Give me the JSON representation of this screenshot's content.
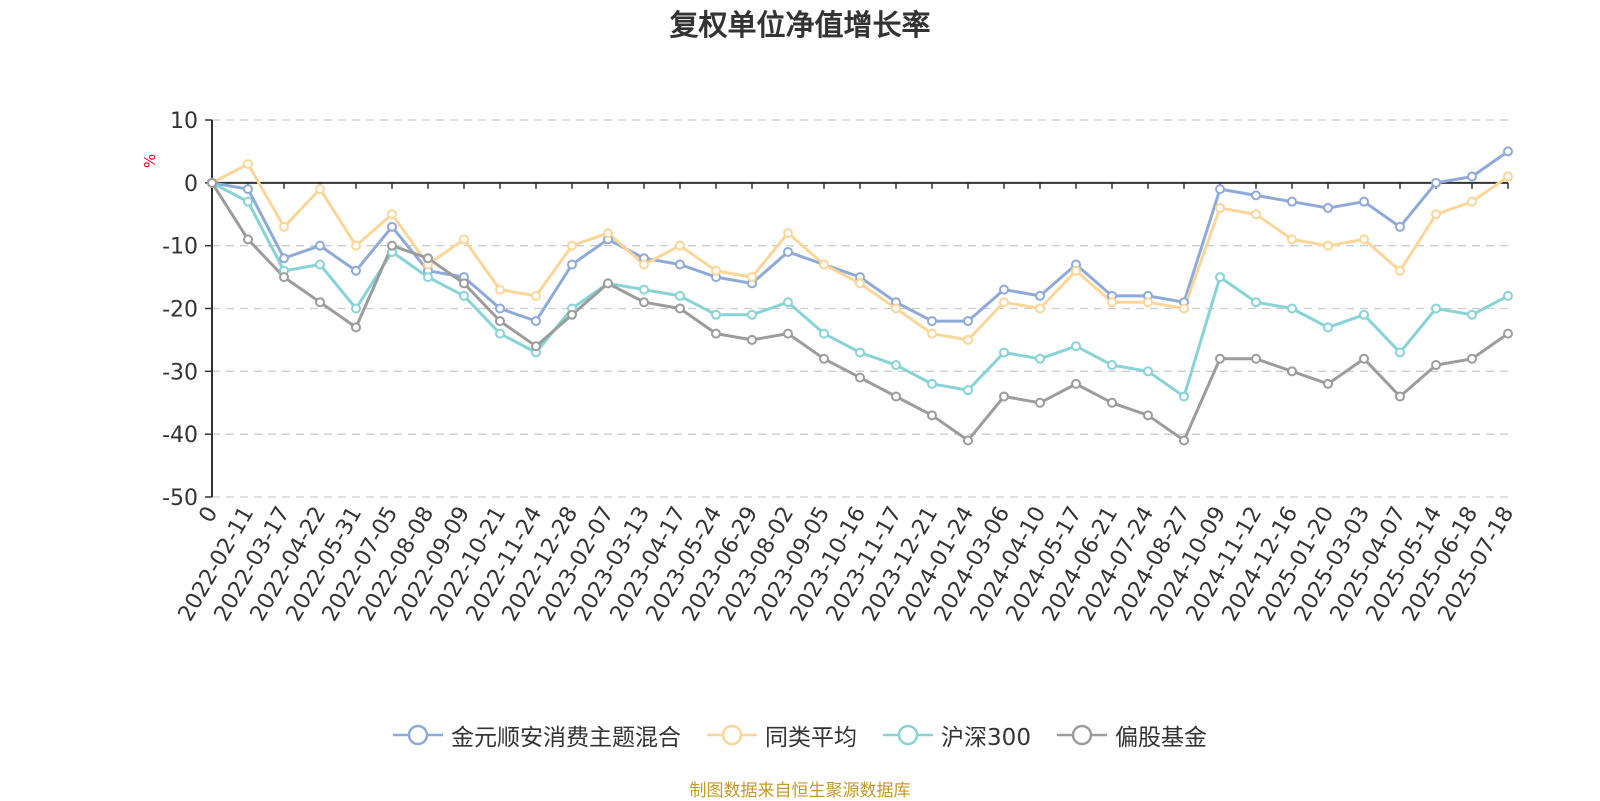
{
  "chart_data": {
    "type": "line",
    "title": "复权单位净值增长率",
    "ylabel": "%",
    "ylim": [
      -50,
      10
    ],
    "yticks": [
      10,
      0,
      -10,
      -20,
      -30,
      -40,
      -50
    ],
    "grid": true,
    "legend_position": "bottom",
    "x": [
      "0",
      "2022-02-11",
      "2022-03-17",
      "2022-04-22",
      "2022-05-31",
      "2022-07-05",
      "2022-08-08",
      "2022-09-09",
      "2022-10-21",
      "2022-11-24",
      "2022-12-28",
      "2023-02-07",
      "2023-03-13",
      "2023-04-17",
      "2023-05-24",
      "2023-06-29",
      "2023-08-02",
      "2023-09-05",
      "2023-10-16",
      "2023-11-17",
      "2023-12-21",
      "2024-01-24",
      "2024-03-06",
      "2024-04-10",
      "2024-05-17",
      "2024-06-21",
      "2024-07-24",
      "2024-08-27",
      "2024-10-09",
      "2024-11-12",
      "2024-12-16",
      "2025-01-20",
      "2025-03-03",
      "2025-04-07",
      "2025-05-14",
      "2025-06-18",
      "2025-07-18"
    ],
    "series": [
      {
        "name": "金元顺安消费主题混合",
        "color": "#8eaad8",
        "values": [
          0,
          -1,
          -12,
          -10,
          -14,
          -7,
          -14,
          -15,
          -20,
          -22,
          -13,
          -9,
          -12,
          -13,
          -15,
          -16,
          -11,
          -13,
          -15,
          -19,
          -22,
          -22,
          -17,
          -18,
          -13,
          -18,
          -18,
          -19,
          -1,
          -2,
          -3,
          -4,
          -3,
          -7,
          0,
          1,
          5
        ]
      },
      {
        "name": "同类平均",
        "color": "#fcd699",
        "values": [
          0,
          3,
          -7,
          -1,
          -10,
          -5,
          -13,
          -9,
          -17,
          -18,
          -10,
          -8,
          -13,
          -10,
          -14,
          -15,
          -8,
          -13,
          -16,
          -20,
          -24,
          -25,
          -19,
          -20,
          -14,
          -19,
          -19,
          -20,
          -4,
          -5,
          -9,
          -10,
          -9,
          -14,
          -5,
          -3,
          1
        ]
      },
      {
        "name": "沪深300",
        "color": "#87d3d6",
        "values": [
          0,
          -3,
          -14,
          -13,
          -20,
          -11,
          -15,
          -18,
          -24,
          -27,
          -20,
          -16,
          -17,
          -18,
          -21,
          -21,
          -19,
          -24,
          -27,
          -29,
          -32,
          -33,
          -27,
          -28,
          -26,
          -29,
          -30,
          -34,
          -15,
          -19,
          -20,
          -23,
          -21,
          -27,
          -20,
          -21,
          -18
        ]
      },
      {
        "name": "偏股基金",
        "color": "#9c9c9c",
        "values": [
          0,
          -9,
          -15,
          -19,
          -23,
          -10,
          -12,
          -16,
          -22,
          -26,
          -21,
          -16,
          -19,
          -20,
          -24,
          -25,
          -24,
          -28,
          -31,
          -34,
          -37,
          -41,
          -34,
          -35,
          -32,
          -35,
          -37,
          -41,
          -28,
          -28,
          -30,
          -32,
          -28,
          -34,
          -29,
          -28,
          -24
        ]
      }
    ]
  },
  "source_note": "制图数据来自恒生聚源数据库"
}
